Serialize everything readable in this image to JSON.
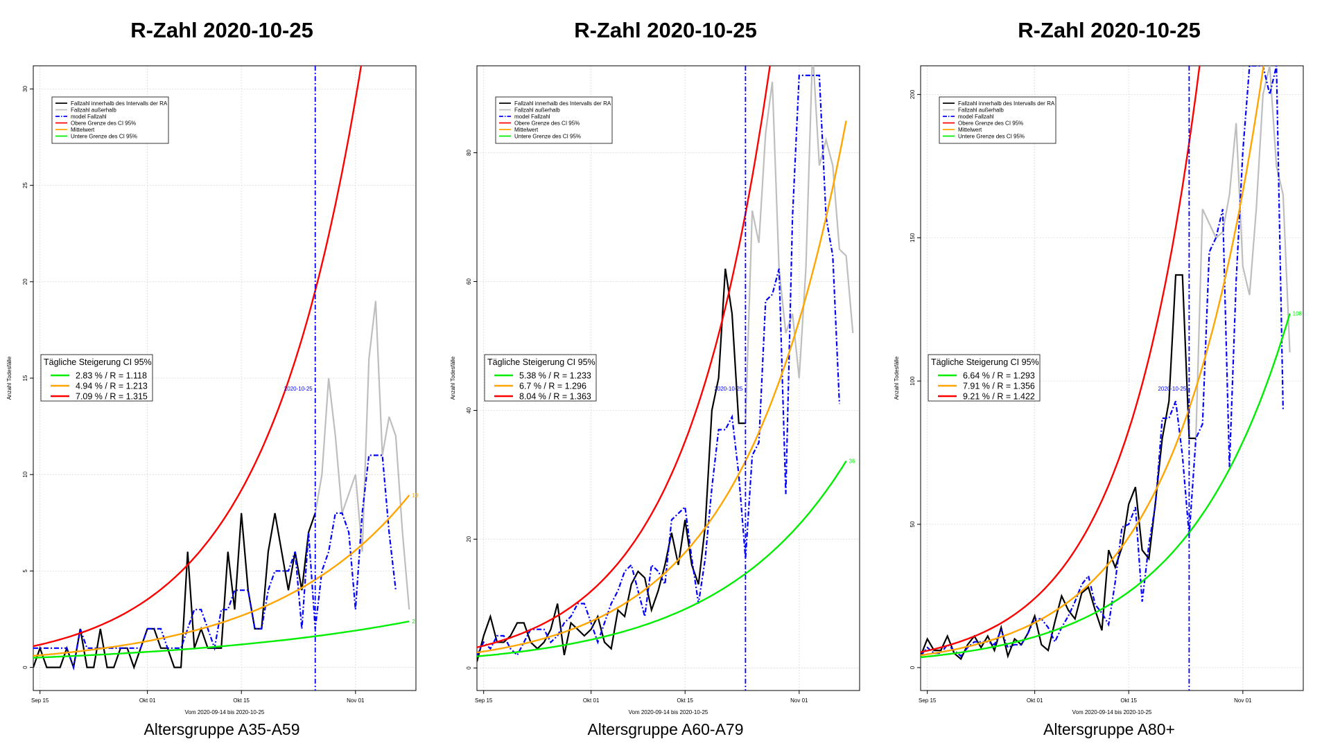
{
  "legend_lines": [
    {
      "label": "Fallzahl innerhalb des Intervalls der RA",
      "color": "#000000",
      "dash": ""
    },
    {
      "label": "Fallzahl außerhalb",
      "color": "#bebebe",
      "dash": ""
    },
    {
      "label": "model Fallzahl",
      "color": "#0000ff",
      "dash": "6,2,1.5,2"
    },
    {
      "label": "Obere Grenze des CI 95%",
      "color": "#ff0000",
      "dash": ""
    },
    {
      "label": "Mittelwert",
      "color": "#ffa500",
      "dash": ""
    },
    {
      "label": "Untere Grenze des CI 95%",
      "color": "#00ee00",
      "dash": ""
    }
  ],
  "ci_legend_title": "Tägliche Steigerung CI 95%",
  "ylabel": "Anzahl Todesfälle",
  "xlabel": "Vom 2020-09-14 bis 2020-10-25",
  "vline_label": "2020-10-25",
  "colors": {
    "black": "#000000",
    "grey": "#bebebe",
    "blue": "#0000ff",
    "red": "#ff0000",
    "orange": "#ffa500",
    "green": "#00ee00"
  },
  "chart_data": [
    {
      "type": "line",
      "title": "R-Zahl 2020-10-25",
      "caption": "Altersgruppe A35-A59",
      "x_ticks": [
        "Sep 15",
        "Okt 01",
        "Okt 15",
        "Nov 01"
      ],
      "x_tick_days": [
        1,
        17,
        31,
        48
      ],
      "xlim": [
        0,
        57
      ],
      "y_ticks": [
        0,
        5,
        10,
        15,
        20,
        25,
        30
      ],
      "ylim": [
        -1.2,
        31.2
      ],
      "vline_day": 42,
      "black_series": {
        "start_day": 0,
        "values": [
          0,
          1,
          0,
          0,
          0,
          1,
          0,
          2,
          0,
          0,
          2,
          0,
          0,
          1,
          1,
          0,
          1,
          2,
          2,
          1,
          1,
          0,
          0,
          6,
          1,
          2,
          1,
          1,
          1,
          6,
          3,
          8,
          4,
          2,
          2,
          6,
          8,
          6,
          4,
          6,
          4,
          7,
          8
        ]
      },
      "grey_series": {
        "start_day": 42,
        "values": [
          8,
          10,
          15,
          12,
          8,
          9,
          10,
          6,
          16,
          19,
          11,
          13,
          12,
          7,
          3
        ]
      },
      "blue_series": {
        "start_day": 0,
        "values": [
          1,
          1,
          1,
          1,
          1,
          1,
          0,
          2,
          1,
          1,
          1,
          1,
          1,
          1,
          1,
          1,
          1,
          2,
          2,
          2,
          1,
          1,
          1,
          2,
          3,
          3,
          2,
          1,
          3,
          3,
          4,
          4,
          4,
          2,
          2,
          4,
          5,
          5,
          5,
          6,
          2,
          7,
          2,
          5,
          6,
          8,
          8,
          7,
          3,
          8,
          11,
          11,
          11,
          7,
          4
        ]
      },
      "ci": [
        {
          "name": "2.83 % / R = 1.118",
          "color": "#00ee00",
          "start": 0.5,
          "rate": 0.0283,
          "end_label": "2"
        },
        {
          "name": "4.94 % / R = 1.213",
          "color": "#ffa500",
          "start": 0.6,
          "rate": 0.0494,
          "end_label": "10"
        },
        {
          "name": "7.09 % / R = 1.315",
          "color": "#ff0000",
          "start": 1.1,
          "rate": 0.0709,
          "end_label": ""
        }
      ],
      "end_day": 56
    },
    {
      "type": "line",
      "title": "R-Zahl 2020-10-25",
      "caption": "Altersgruppe A60-A79",
      "x_ticks": [
        "Sep 15",
        "Okt 01",
        "Okt 15",
        "Nov 01"
      ],
      "x_tick_days": [
        1,
        17,
        31,
        48
      ],
      "xlim": [
        0,
        57
      ],
      "y_ticks": [
        0,
        20,
        40,
        60,
        80
      ],
      "ylim": [
        -3.5,
        93.5
      ],
      "vline_day": 40,
      "black_series": {
        "start_day": 0,
        "values": [
          1,
          5,
          8,
          4,
          4,
          5,
          7,
          7,
          4,
          3,
          4,
          6,
          10,
          2,
          7,
          6,
          5,
          6,
          8,
          4,
          3,
          9,
          8,
          13,
          15,
          14,
          9,
          12,
          16,
          21,
          16,
          23,
          16,
          13,
          22,
          40,
          45,
          62,
          55,
          38,
          38
        ]
      },
      "grey_series": {
        "start_day": 40,
        "values": [
          38,
          71,
          66,
          83,
          91,
          62,
          52,
          55,
          45,
          62,
          96,
          78,
          82,
          78,
          65,
          64,
          52
        ]
      },
      "blue_series": {
        "start_day": 0,
        "values": [
          2,
          4,
          3,
          5,
          5,
          3,
          2,
          4,
          6,
          6,
          6,
          4,
          5,
          7,
          8,
          10,
          10,
          7,
          4,
          7,
          10,
          12,
          15,
          16,
          12,
          8,
          16,
          15,
          13,
          23,
          24,
          25,
          17,
          10,
          17,
          28,
          37,
          37,
          39,
          30,
          17,
          33,
          35,
          57,
          58,
          62,
          27,
          70,
          92,
          92,
          92,
          92,
          70,
          64,
          41
        ]
      },
      "ci": [
        {
          "name": "5.38 % / R = 1.233",
          "color": "#00ee00",
          "start": 1.8,
          "rate": 0.0538,
          "end_label": "36"
        },
        {
          "name": "6.7 % / R = 1.296",
          "color": "#ffa500",
          "start": 2.4,
          "rate": 0.067,
          "end_label": ""
        },
        {
          "name": "8.04 % / R = 1.363",
          "color": "#ff0000",
          "start": 3.2,
          "rate": 0.0804,
          "end_label": ""
        }
      ],
      "end_day": 55
    },
    {
      "type": "line",
      "title": "R-Zahl 2020-10-25",
      "caption": "Altersgruppe A80+",
      "x_ticks": [
        "Sep 15",
        "Okt 01",
        "Okt 15",
        "Nov 01"
      ],
      "x_tick_days": [
        1,
        17,
        31,
        48
      ],
      "xlim": [
        0,
        57
      ],
      "y_ticks": [
        0,
        50,
        100,
        150,
        200
      ],
      "ylim": [
        -8,
        210
      ],
      "vline_day": 40,
      "black_series": {
        "start_day": 0,
        "values": [
          4,
          10,
          6,
          6,
          11,
          5,
          3,
          8,
          11,
          7,
          11,
          6,
          14,
          4,
          10,
          8,
          12,
          18,
          8,
          6,
          16,
          25,
          20,
          17,
          26,
          28,
          20,
          13,
          41,
          35,
          42,
          57,
          63,
          41,
          38,
          58,
          80,
          93,
          137,
          137,
          80,
          80
        ]
      },
      "grey_series": {
        "start_day": 41,
        "values": [
          80,
          160,
          155,
          150,
          152,
          165,
          190,
          140,
          130,
          160,
          200,
          210,
          175,
          165,
          110
        ]
      },
      "blue_series": {
        "start_day": 0,
        "values": [
          4,
          7,
          5,
          5,
          8,
          6,
          4,
          7,
          9,
          9,
          9,
          8,
          13,
          7,
          8,
          8,
          12,
          17,
          17,
          14,
          9,
          14,
          18,
          23,
          29,
          32,
          22,
          19,
          15,
          30,
          49,
          50,
          56,
          23,
          43,
          57,
          87,
          87,
          93,
          74,
          46,
          80,
          85,
          145,
          150,
          160,
          70,
          135,
          180,
          210,
          210,
          210,
          200,
          210,
          90
        ]
      },
      "ci": [
        {
          "name": "6.64 % / R = 1.293",
          "color": "#00ee00",
          "start": 3.6,
          "rate": 0.0664,
          "end_label": "108"
        },
        {
          "name": "7.91 % / R = 1.356",
          "color": "#ffa500",
          "start": 4.3,
          "rate": 0.0791,
          "end_label": ""
        },
        {
          "name": "9.21 % / R = 1.422",
          "color": "#ff0000",
          "start": 5.4,
          "rate": 0.0921,
          "end_label": ""
        }
      ],
      "end_day": 55
    }
  ]
}
